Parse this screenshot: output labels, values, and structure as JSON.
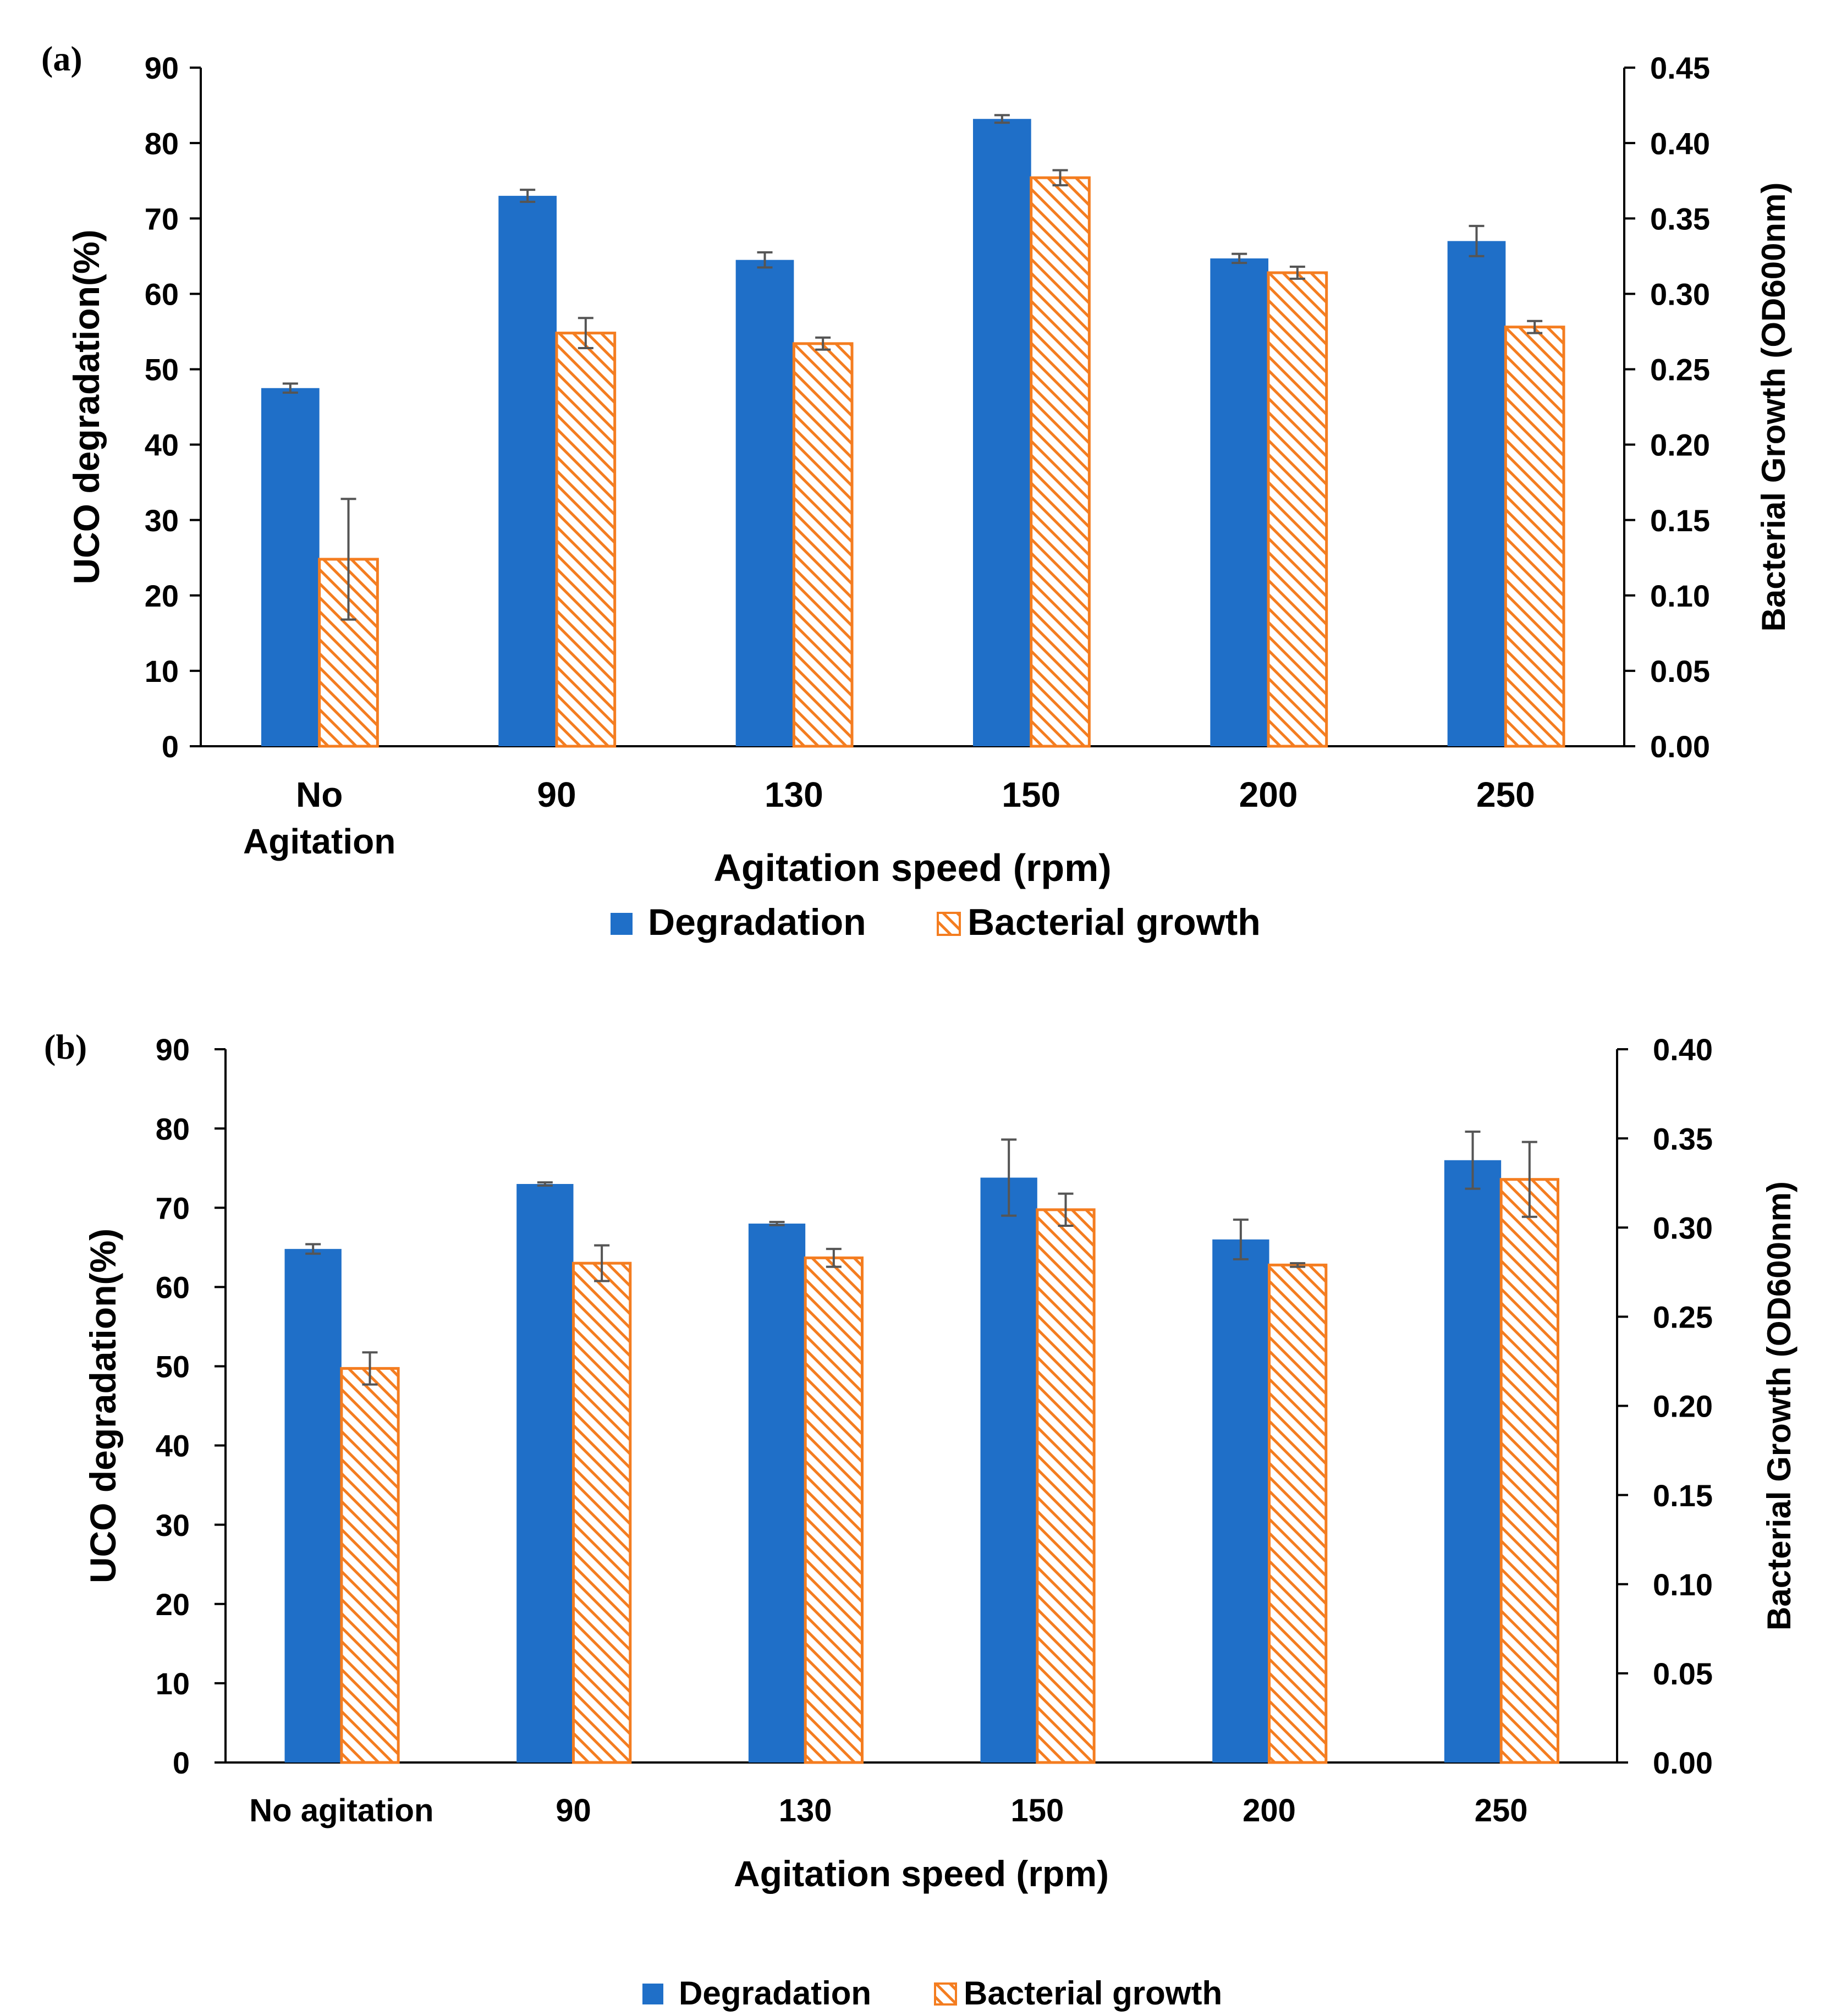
{
  "colors": {
    "degradation": "#1f6fc8",
    "growth": "#f47d20",
    "hatch_bg": "#ffffff"
  },
  "chart_data": [
    {
      "type": "bar",
      "panel_label": "(a)",
      "categories": [
        [
          "No",
          "Agitation"
        ],
        [
          "90"
        ],
        [
          "130"
        ],
        [
          "150"
        ],
        [
          "200"
        ],
        [
          "250"
        ]
      ],
      "xlabel": "Agitation speed (rpm)",
      "ylabel": "UCO degradation(%)",
      "y2label": "Bacterial Growth (OD600nm)",
      "ylim": [
        0,
        90
      ],
      "yticks": [
        0,
        10,
        20,
        30,
        40,
        50,
        60,
        70,
        80,
        90
      ],
      "y2lim": [
        0,
        0.45
      ],
      "y2ticks": [
        "0.00",
        "0.05",
        "0.10",
        "0.15",
        "0.20",
        "0.25",
        "0.30",
        "0.35",
        "0.40",
        "0.45"
      ],
      "series": [
        {
          "name": "Degradation",
          "axis": "left",
          "values": [
            47.5,
            73,
            64.5,
            83.2,
            64.7,
            67
          ],
          "errors": [
            0.6,
            0.8,
            1.0,
            0.5,
            0.6,
            2.0
          ]
        },
        {
          "name": "Bacterial growth",
          "axis": "right",
          "values": [
            0.124,
            0.274,
            0.267,
            0.377,
            0.314,
            0.278
          ],
          "errors": [
            0.04,
            0.01,
            0.004,
            0.005,
            0.004,
            0.004
          ]
        }
      ]
    },
    {
      "type": "bar",
      "panel_label": "(b)",
      "categories": [
        [
          "No agitation"
        ],
        [
          "90"
        ],
        [
          "130"
        ],
        [
          "150"
        ],
        [
          "200"
        ],
        [
          "250"
        ]
      ],
      "xlabel": "Agitation speed (rpm)",
      "ylabel": "UCO degradation(%)",
      "y2label": "Bacterial Growth (OD600nm)",
      "ylim": [
        0,
        90
      ],
      "yticks": [
        0,
        10,
        20,
        30,
        40,
        50,
        60,
        70,
        80,
        90
      ],
      "y2lim": [
        0,
        0.4
      ],
      "y2ticks": [
        "0.00",
        "0.05",
        "0.10",
        "0.15",
        "0.20",
        "0.25",
        "0.30",
        "0.35",
        "0.40"
      ],
      "series": [
        {
          "name": "Degradation",
          "axis": "left",
          "values": [
            64.8,
            73,
            68,
            73.8,
            66,
            76
          ],
          "errors": [
            0.6,
            0.2,
            0.2,
            4.8,
            2.5,
            3.6
          ]
        },
        {
          "name": "Bacterial growth",
          "axis": "right",
          "values": [
            0.221,
            0.28,
            0.283,
            0.31,
            0.279,
            0.327
          ],
          "errors": [
            0.009,
            0.01,
            0.005,
            0.009,
            0.001,
            0.021
          ]
        }
      ]
    }
  ]
}
